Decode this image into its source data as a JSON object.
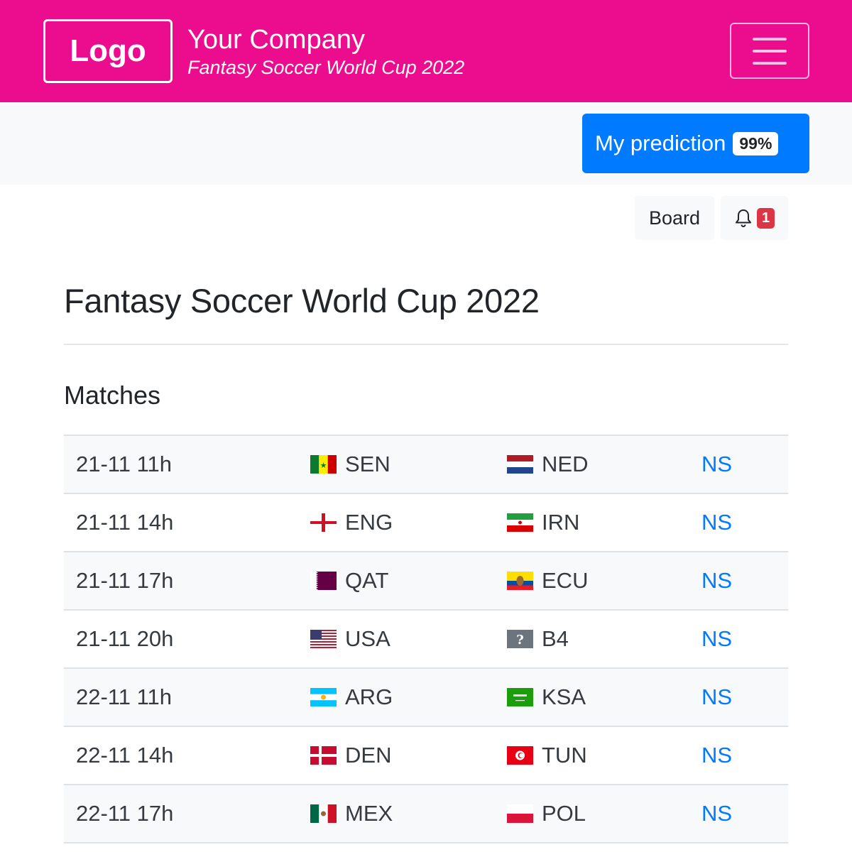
{
  "header": {
    "logo": "Logo",
    "company": "Your Company",
    "subtitle": "Fantasy Soccer World Cup 2022",
    "menu_icon": "hamburger-icon",
    "color": "#ec0c8e"
  },
  "prediction": {
    "label": "My prediction",
    "percent": "99%",
    "color": "#007bff"
  },
  "toolbar": {
    "board_label": "Board",
    "notifications_icon": "bell-icon",
    "notifications_count": "1"
  },
  "page": {
    "title": "Fantasy Soccer World Cup 2022",
    "section": "Matches"
  },
  "matches": [
    {
      "time": "21-11 11h",
      "home": "SEN",
      "away": "NED",
      "status": "NS"
    },
    {
      "time": "21-11 14h",
      "home": "ENG",
      "away": "IRN",
      "status": "NS"
    },
    {
      "time": "21-11 17h",
      "home": "QAT",
      "away": "ECU",
      "status": "NS"
    },
    {
      "time": "21-11 20h",
      "home": "USA",
      "away": "B4",
      "status": "NS"
    },
    {
      "time": "22-11 11h",
      "home": "ARG",
      "away": "KSA",
      "status": "NS"
    },
    {
      "time": "22-11 14h",
      "home": "DEN",
      "away": "TUN",
      "status": "NS"
    },
    {
      "time": "22-11 17h",
      "home": "MEX",
      "away": "POL",
      "status": "NS"
    }
  ]
}
